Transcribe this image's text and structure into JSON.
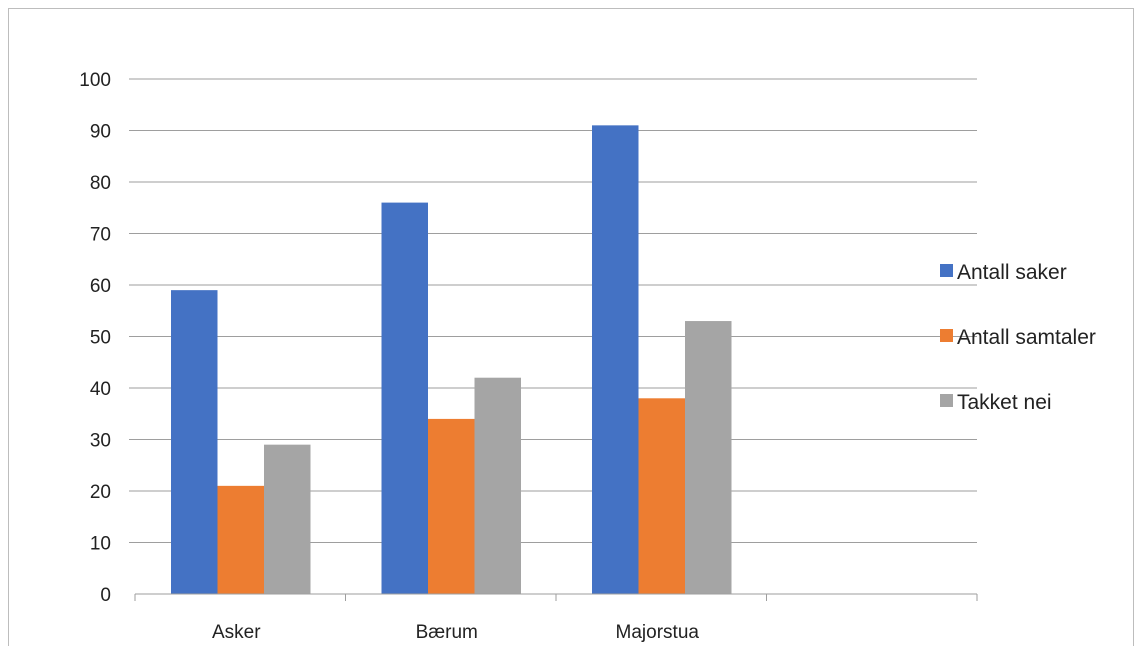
{
  "chart_data": {
    "type": "bar",
    "title": "",
    "xlabel": "",
    "ylabel": "",
    "categories": [
      "Asker",
      "Bærum",
      "Majorstua",
      ""
    ],
    "series": [
      {
        "name": "Antall saker",
        "values": [
          59,
          76,
          91,
          null
        ],
        "color": "#4472c4"
      },
      {
        "name": "Antall samtaler",
        "values": [
          21,
          34,
          38,
          null
        ],
        "color": "#ed7d31"
      },
      {
        "name": "Takket nei",
        "values": [
          29,
          42,
          53,
          null
        ],
        "color": "#a5a5a5"
      }
    ],
    "ylim": [
      0,
      100
    ],
    "yticks": [
      0,
      10,
      20,
      30,
      40,
      50,
      60,
      70,
      80,
      90,
      100
    ],
    "grid": true,
    "legend_position": "right",
    "colors": {
      "gridline": "#9e9e9e",
      "axis": "#9e9e9e",
      "frame": "#bdbdbd"
    }
  }
}
